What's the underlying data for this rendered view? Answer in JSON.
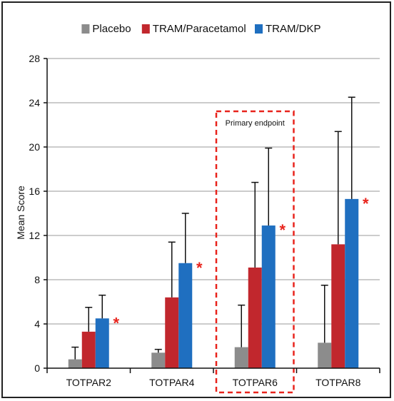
{
  "chart_data": {
    "type": "bar",
    "title": "",
    "xlabel": "",
    "ylabel": "Mean Score",
    "ylim": [
      0,
      28
    ],
    "yticks": [
      "0",
      "4",
      "8",
      "12",
      "16",
      "20",
      "24",
      "28"
    ],
    "grid": true,
    "legend_position": "top",
    "categories": [
      "TOTPAR2",
      "TOTPAR4",
      "TOTPAR6",
      "TOTPAR8"
    ],
    "series": [
      {
        "name": "Placebo",
        "color": "#8c8c8c",
        "values": [
          0.8,
          1.4,
          1.9,
          2.3
        ],
        "error": [
          1.1,
          0.3,
          3.8,
          5.2
        ]
      },
      {
        "name": "TRAM/Paracetamol",
        "color": "#c1272d",
        "values": [
          3.3,
          6.4,
          9.1,
          11.2
        ],
        "error": [
          2.2,
          5.0,
          7.7,
          10.2
        ]
      },
      {
        "name": "TRAM/DKP",
        "color": "#1f6fc0",
        "values": [
          4.5,
          9.5,
          12.9,
          15.3
        ],
        "error": [
          2.1,
          4.5,
          7.0,
          9.2
        ]
      }
    ],
    "significance_marker": "*",
    "significance_color": "#e8231c",
    "significant": [
      false,
      false,
      true
    ],
    "annotations": [
      {
        "text": "Primary endpoint",
        "category": "TOTPAR6",
        "style": "dashed-box",
        "color": "#e8231c"
      }
    ]
  }
}
